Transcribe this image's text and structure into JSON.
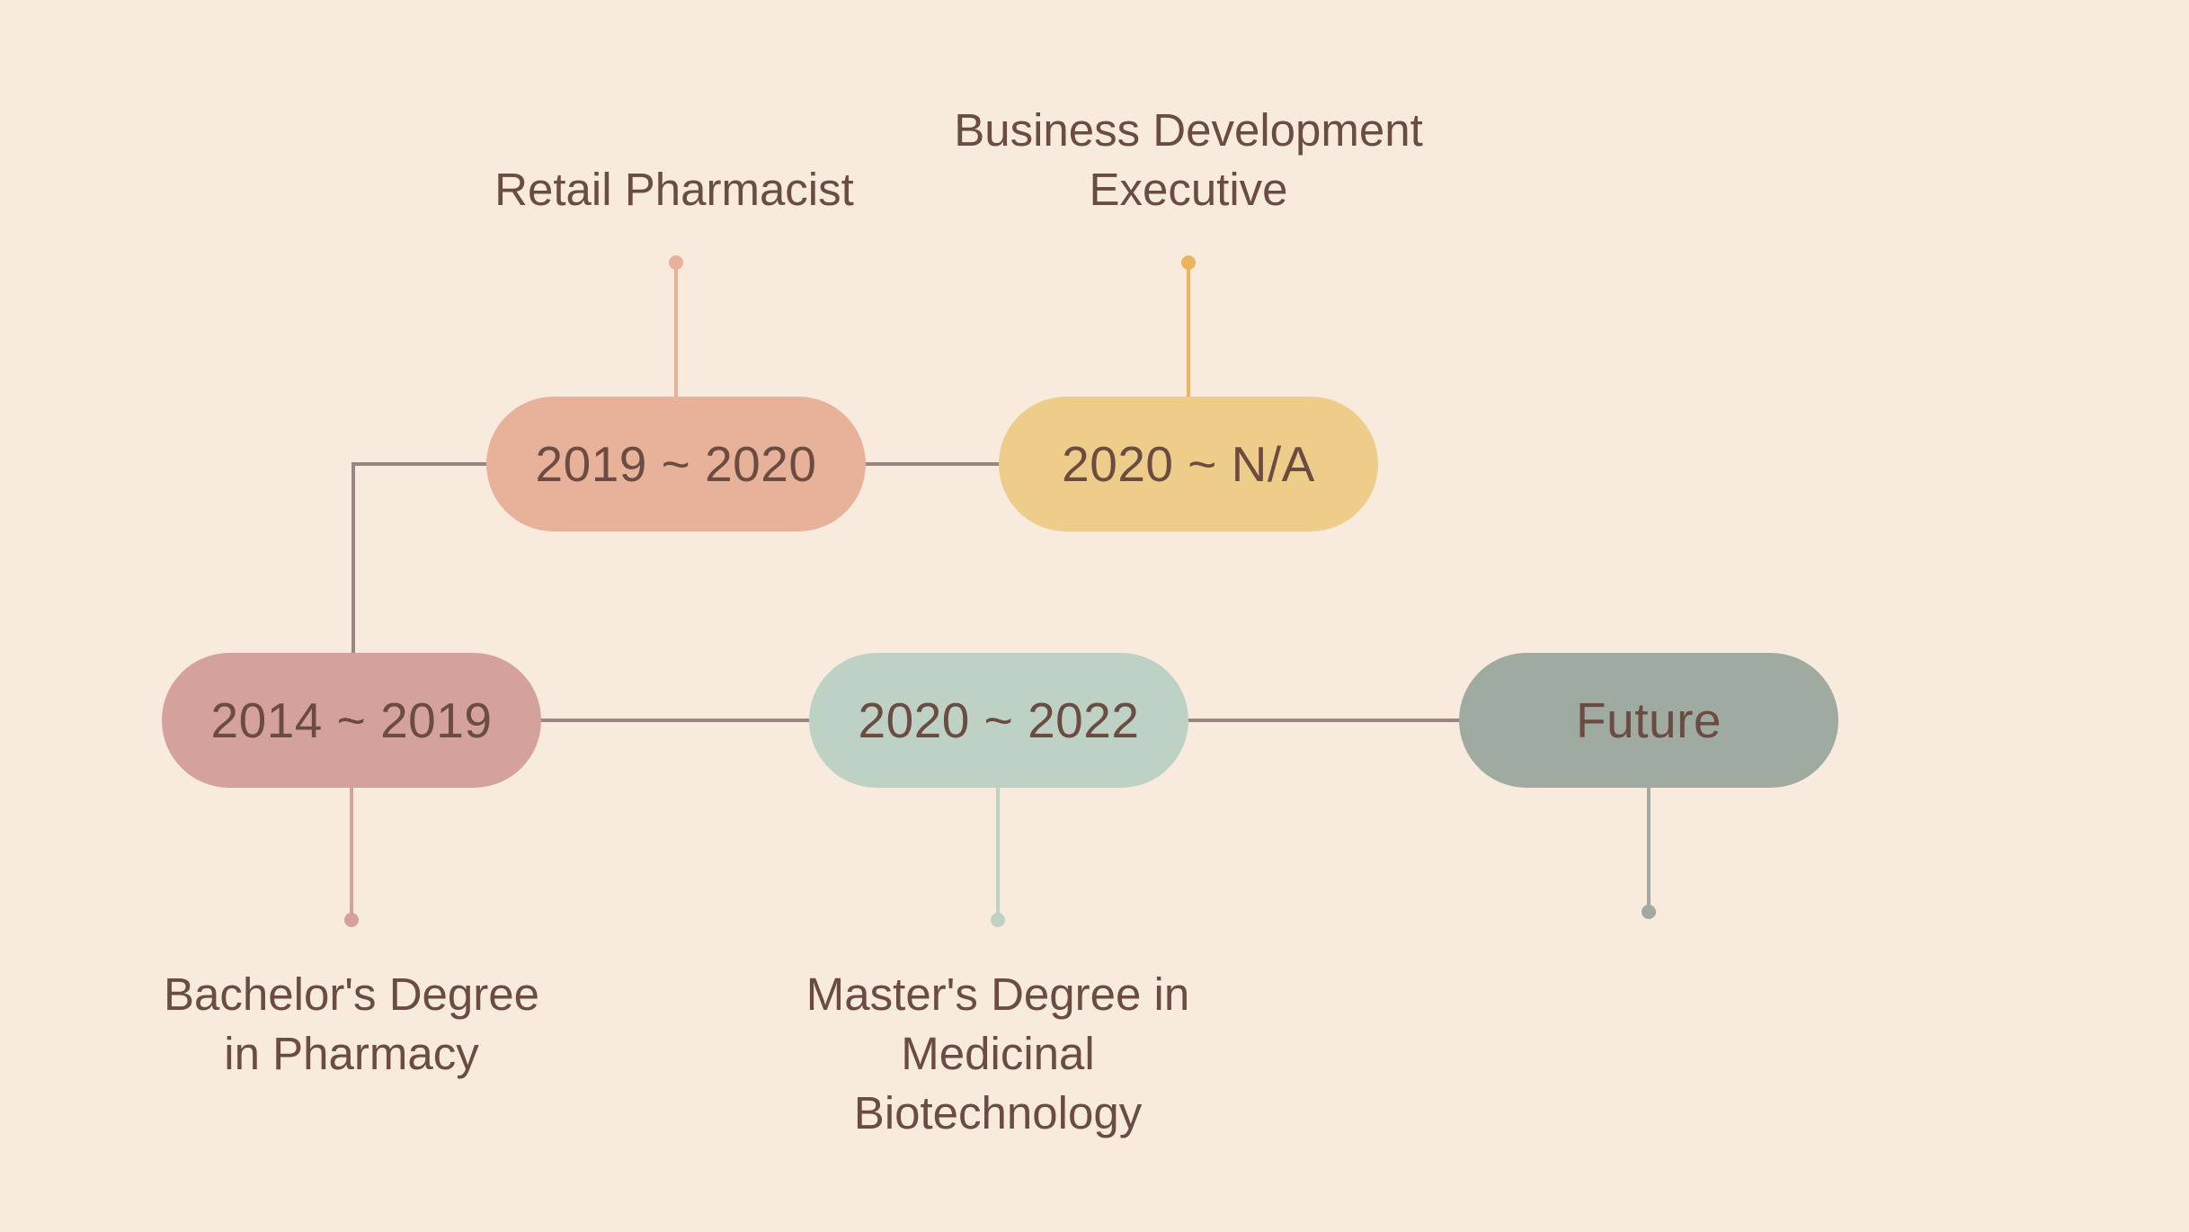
{
  "colors": {
    "background": "#f8ebde",
    "text": "#6b4c42",
    "connector": "#9a8582",
    "pill_2014_2019": "#d4a19c",
    "pill_2019_2020": "#e8b29a",
    "pill_2020_na": "#eecc8a",
    "pill_2020_2022": "#bdd1c5",
    "pill_future": "#9faaa0",
    "stem_2014_2019": "#d4a19c",
    "stem_2019_2020": "#e8b29a",
    "stem_2020_na": "#eeb45c",
    "stem_2020_2022": "#bdd1c5",
    "stem_future": "#9faaa0"
  },
  "nodes": {
    "bachelor": {
      "period": "2014 ~ 2019",
      "label": "Bachelor's Degree\nin Pharmacy"
    },
    "retail": {
      "period": "2019 ~ 2020",
      "label": "Retail Pharmacist"
    },
    "business": {
      "period": "2020 ~ N/A",
      "label": "Business Development\nExecutive"
    },
    "master": {
      "period": "2020 ~ 2022",
      "label": "Master's Degree in\nMedicinal\nBiotechnology"
    },
    "future": {
      "period": "Future",
      "label": ""
    }
  }
}
